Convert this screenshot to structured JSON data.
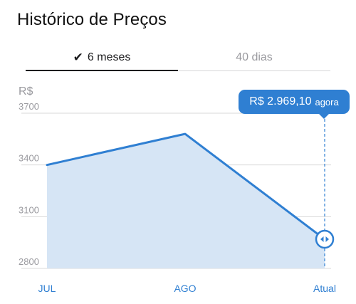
{
  "header": {
    "title": "Histórico de Preços"
  },
  "tabs": [
    {
      "label": "6 meses",
      "selected": true,
      "icon": "checkmark-icon"
    },
    {
      "label": "40 dias",
      "selected": false
    }
  ],
  "tooltip": {
    "price": "R$ 2.969,10",
    "when": "agora"
  },
  "colors": {
    "accent": "#2f7fd2",
    "area_fill": "#d6e5f5",
    "grid": "#d9d9d9"
  },
  "chart_data": {
    "type": "area",
    "ylabel": "R$",
    "categories": [
      "JUL",
      "AGO",
      "Atual"
    ],
    "values": [
      3400,
      3580,
      2969.1
    ],
    "yticks": [
      3700,
      3400,
      3100,
      2800
    ],
    "ylim": [
      2800,
      3700
    ],
    "grid": true,
    "marker": {
      "category": "Atual",
      "icon": "slider-handle-icon"
    }
  }
}
